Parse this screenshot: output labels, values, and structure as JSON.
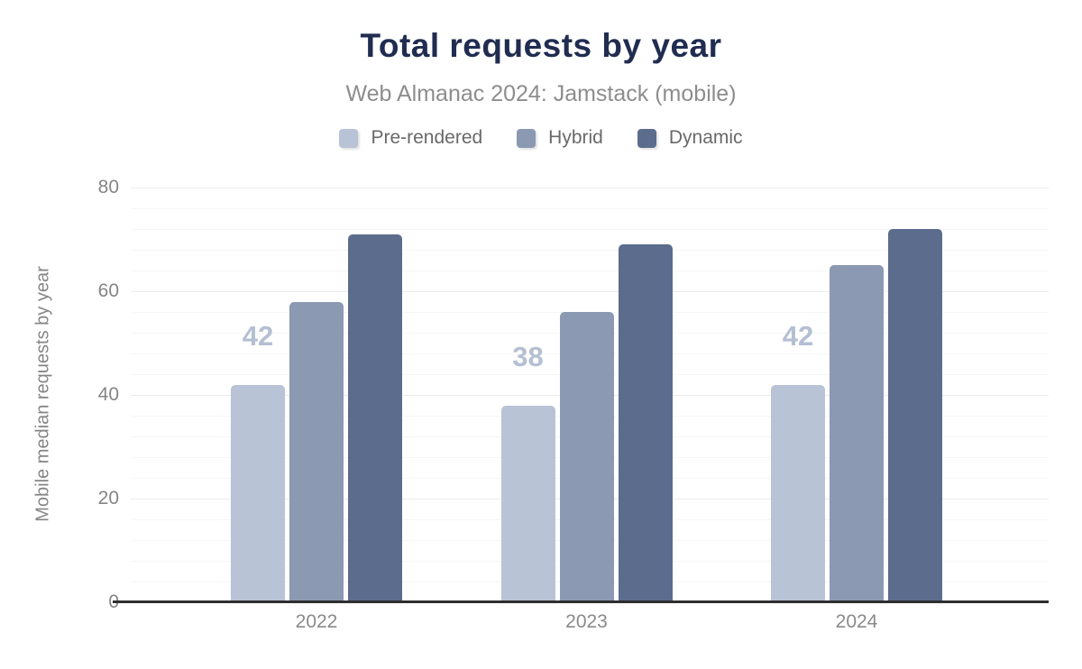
{
  "header": {
    "title": "Total requests by year",
    "subtitle": "Web Almanac 2024: Jamstack (mobile)"
  },
  "legend": {
    "items": [
      {
        "label": "Pre-rendered",
        "color": "#b9c3d6"
      },
      {
        "label": "Hybrid",
        "color": "#8b99b3"
      },
      {
        "label": "Dynamic",
        "color": "#5b6c8d"
      }
    ]
  },
  "chart_data": {
    "type": "bar",
    "title": "Total requests by year",
    "subtitle": "Web Almanac 2024: Jamstack (mobile)",
    "categories": [
      "2022",
      "2023",
      "2024"
    ],
    "series": [
      {
        "name": "Pre-rendered",
        "color": "#b9c3d6",
        "values": [
          42,
          38,
          42
        ],
        "labels": [
          "42",
          "38",
          "42"
        ]
      },
      {
        "name": "Hybrid",
        "color": "#8b99b3",
        "values": [
          58,
          56,
          65
        ],
        "labels": [
          "",
          "",
          ""
        ]
      },
      {
        "name": "Dynamic",
        "color": "#5b6c8d",
        "values": [
          71,
          69,
          72
        ],
        "labels": [
          "",
          "",
          ""
        ]
      }
    ],
    "xlabel": "",
    "ylabel": "Mobile median requests by year",
    "ylim": [
      0,
      80
    ],
    "yticks": [
      0,
      20,
      40,
      60,
      80
    ],
    "minor_grid_step": 4,
    "grid": true,
    "legend_position": "top",
    "colors": {
      "title": "#202c50",
      "subtitle": "#8d8d8d",
      "axis_text": "#858585",
      "gridline_major": "#ebebeb",
      "gridline_minor": "#f6f6f6",
      "baseline": "#2e2e2e",
      "annotation": "#b4bfd3",
      "background": "#ffffff"
    }
  }
}
